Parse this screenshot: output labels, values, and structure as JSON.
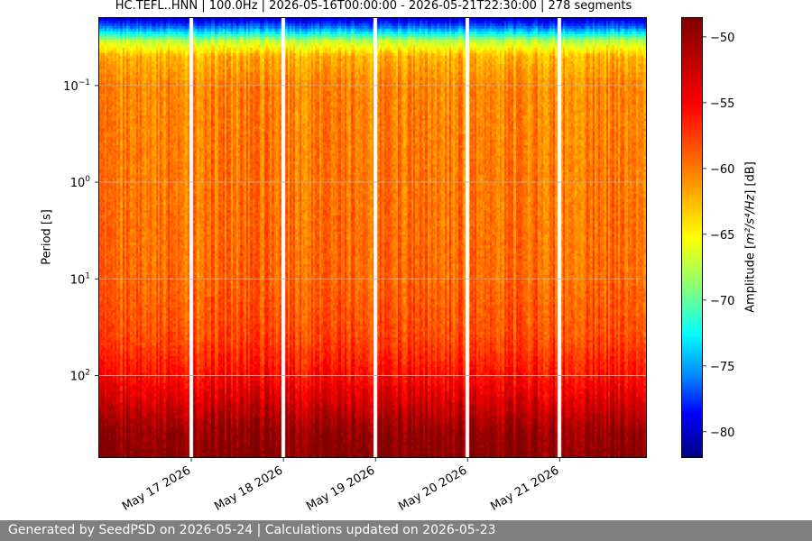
{
  "chart_data": {
    "type": "heatmap",
    "title": "HC.TEFL..HNN | 100.0Hz | 2026-05-16T00:00:00 - 2026-05-21T22:30:00 | 278 segments",
    "ylabel": "Period [s]",
    "y_scale": "log",
    "y_inverted": true,
    "ylim": [
      0.02,
      700
    ],
    "y_ticks": [
      {
        "value": 0.1,
        "base": "10",
        "exp": "−1"
      },
      {
        "value": 1,
        "base": "10",
        "exp": "0"
      },
      {
        "value": 10,
        "base": "10",
        "exp": "1"
      },
      {
        "value": 100,
        "base": "10",
        "exp": "2"
      }
    ],
    "x_range": [
      "2026-05-16T00:00:00",
      "2026-05-21T22:30:00"
    ],
    "x_ticks": [
      {
        "value": "2026-05-17",
        "label": "May 17 2026"
      },
      {
        "value": "2026-05-18",
        "label": "May 18 2026"
      },
      {
        "value": "2026-05-19",
        "label": "May 19 2026"
      },
      {
        "value": "2026-05-20",
        "label": "May 20 2026"
      },
      {
        "value": "2026-05-21",
        "label": "May 21 2026"
      }
    ],
    "data_gaps": [
      "2026-05-17T00:00:00",
      "2026-05-18T00:00:00",
      "2026-05-19T00:00:00",
      "2026-05-20T00:00:00",
      "2026-05-21T00:00:00"
    ],
    "grid": true,
    "colormap": "jet",
    "colorbar": {
      "label_text": "Amplitude [",
      "label_unit_tex": "m²/s⁴/Hz",
      "label_tail": "] [dB]",
      "vmin": -82,
      "vmax": -48.5,
      "ticks": [
        -50,
        -55,
        -60,
        -65,
        -70,
        -75,
        -80
      ],
      "tick_labels": [
        "−50",
        "−55",
        "−60",
        "−65",
        "−70",
        "−75",
        "−80"
      ]
    },
    "amplitude_profile_db": [
      {
        "period": 0.02,
        "db": -80
      },
      {
        "period": 0.025,
        "db": -74
      },
      {
        "period": 0.035,
        "db": -63
      },
      {
        "period": 0.05,
        "db": -58.5
      },
      {
        "period": 0.1,
        "db": -57
      },
      {
        "period": 1,
        "db": -56.5
      },
      {
        "period": 10,
        "db": -56
      },
      {
        "period": 40,
        "db": -55
      },
      {
        "period": 100,
        "db": -53
      },
      {
        "period": 200,
        "db": -51
      },
      {
        "period": 400,
        "db": -49
      },
      {
        "period": 700,
        "db": -48.5
      }
    ]
  },
  "footer": {
    "text": "Generated by SeedPSD on 2026-05-24 | Calculations updated on 2026-05-23"
  }
}
